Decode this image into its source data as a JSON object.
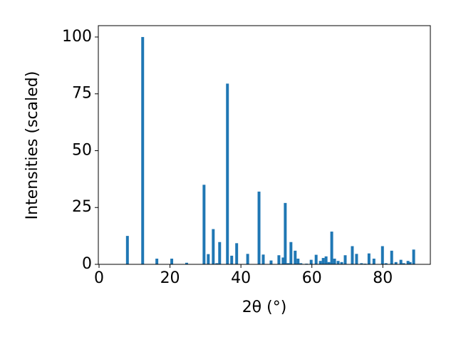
{
  "chart_data": {
    "type": "bar",
    "xlabel": "2θ (°)",
    "ylabel": "Intensities (scaled)",
    "x": [
      8.0,
      12.3,
      16.3,
      20.5,
      24.7,
      29.6,
      30.8,
      32.2,
      33.2,
      34.0,
      36.2,
      37.4,
      38.8,
      41.9,
      45.1,
      46.3,
      48.5,
      50.7,
      51.9,
      52.5,
      53.3,
      54.1,
      55.3,
      56.1,
      56.9,
      58.5,
      59.8,
      61.2,
      62.4,
      63.2,
      64.0,
      64.8,
      65.6,
      66.4,
      67.4,
      68.4,
      69.4,
      71.4,
      72.6,
      74.0,
      75.0,
      76.1,
      77.5,
      79.9,
      80.9,
      82.5,
      83.7,
      85.1,
      85.9,
      87.1,
      87.7,
      88.7
    ],
    "values": [
      12.5,
      100,
      2.5,
      2.5,
      0.7,
      35,
      4.5,
      15.5,
      0.5,
      9.8,
      79.5,
      3.8,
      9.3,
      4.6,
      32,
      4.3,
      1.7,
      4,
      3,
      27,
      0.5,
      9.8,
      6,
      2.5,
      0.5,
      0.3,
      2,
      4.2,
      1.5,
      2.8,
      3.5,
      1,
      14.4,
      2.5,
      1.5,
      1,
      4,
      8,
      4.6,
      0.5,
      0.3,
      4.8,
      2.5,
      8,
      0.5,
      6,
      1,
      2,
      0.5,
      1.5,
      1,
      6.5
    ],
    "color": "#1f77b4",
    "xlim": [
      -0.2,
      93.4
    ],
    "xticks": [
      0,
      20,
      40,
      60,
      80
    ],
    "ylim": [
      0,
      105
    ],
    "yticks": [
      0,
      25,
      50,
      75,
      100
    ],
    "grid": false
  }
}
